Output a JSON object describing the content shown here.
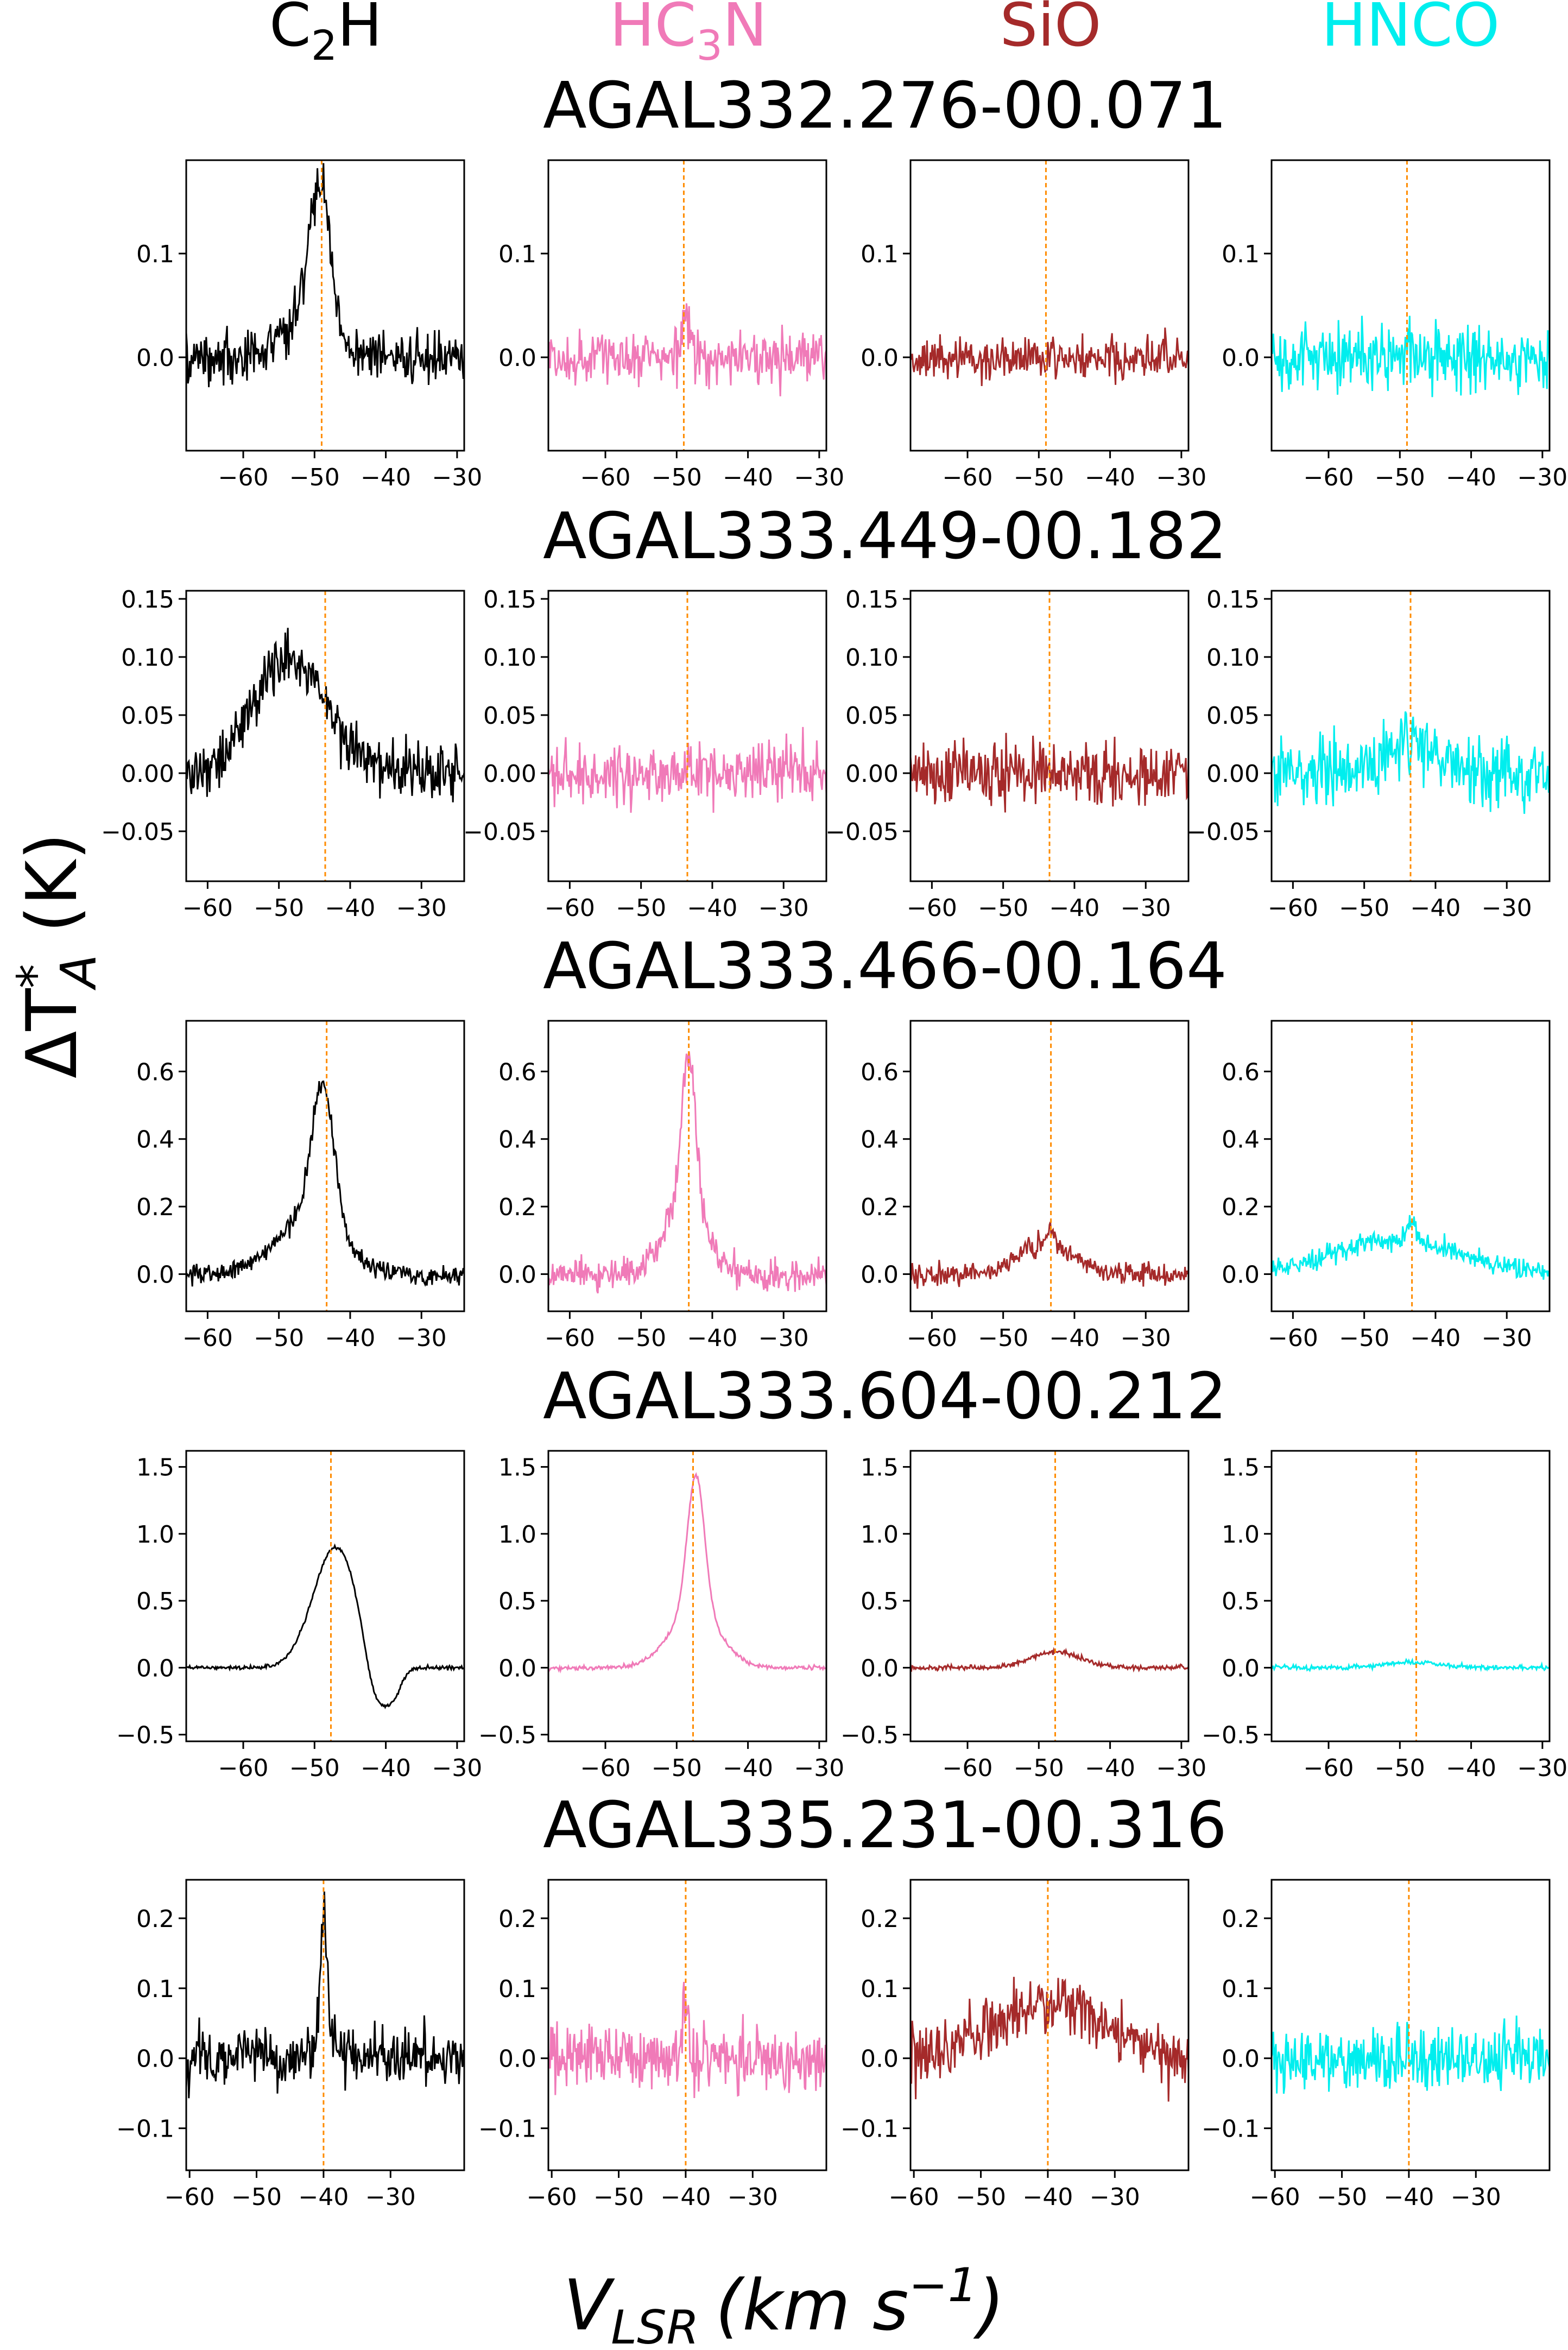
{
  "columns": [
    {
      "name": "C",
      "sub": "2",
      "rest": "H",
      "color": "#000000"
    },
    {
      "name": "HC",
      "sub": "3",
      "rest": "N",
      "color": "#f07ab8"
    },
    {
      "name": "SiO",
      "sub": "",
      "rest": "",
      "color": "#a52a2a"
    },
    {
      "name": "HNCO",
      "sub": "",
      "rest": "",
      "color": "#00eeee"
    }
  ],
  "y_axis_label": {
    "prefix": "ΔT",
    "sup": "*",
    "sub": "A",
    "unit": "(K)"
  },
  "x_axis_label": {
    "base": "V",
    "sub": "LSR",
    "unit_open": "(km s",
    "unit_sup": "−1",
    "unit_close": ")"
  },
  "chart_data": [
    {
      "source": "AGAL332.276-00.071",
      "type": "line",
      "vlsr": -49,
      "xlim": [
        -68,
        -29
      ],
      "ylim": [
        -0.09,
        0.19
      ],
      "xticks": [
        -60,
        -50,
        -40,
        -30
      ],
      "yticks": [
        {
          "v": 0.0,
          "label": "0.0"
        },
        {
          "v": 0.1,
          "label": "0.1"
        }
      ],
      "series": [
        {
          "noise": 0.018,
          "lines": [
            {
              "c": -49.2,
              "a": 0.13,
              "w": 1.5
            },
            {
              "c": -51,
              "a": 0.04,
              "w": 3
            }
          ]
        },
        {
          "noise": 0.018,
          "lines": [
            {
              "c": -48.8,
              "a": 0.04,
              "w": 0.6
            }
          ]
        },
        {
          "noise": 0.015,
          "lines": []
        },
        {
          "noise": 0.022,
          "lines": [
            {
              "c": -49,
              "a": 0.02,
              "w": 0.5
            }
          ]
        }
      ]
    },
    {
      "source": "AGAL333.449-00.182",
      "type": "line",
      "vlsr": -43.5,
      "xlim": [
        -63,
        -24
      ],
      "ylim": [
        -0.093,
        0.157
      ],
      "xticks": [
        -60,
        -50,
        -40,
        -30
      ],
      "yticks": [
        {
          "v": -0.05,
          "label": "−0.05"
        },
        {
          "v": 0.0,
          "label": "0.00"
        },
        {
          "v": 0.05,
          "label": "0.05"
        },
        {
          "v": 0.1,
          "label": "0.10"
        },
        {
          "v": 0.15,
          "label": "0.15"
        }
      ],
      "series": [
        {
          "noise": 0.017,
          "lines": [
            {
              "c": -48.5,
              "a": 0.1,
              "w": 5
            }
          ]
        },
        {
          "noise": 0.02,
          "lines": []
        },
        {
          "noise": 0.02,
          "lines": []
        },
        {
          "noise": 0.021,
          "lines": [
            {
              "c": -44,
              "a": 0.025,
              "w": 4
            }
          ]
        }
      ]
    },
    {
      "source": "AGAL333.466-00.164",
      "type": "line",
      "vlsr": -43.3,
      "xlim": [
        -63,
        -24
      ],
      "ylim": [
        -0.11,
        0.75
      ],
      "xticks": [
        -60,
        -50,
        -40,
        -30
      ],
      "yticks": [
        {
          "v": 0.0,
          "label": "0.0"
        },
        {
          "v": 0.2,
          "label": "0.2"
        },
        {
          "v": 0.4,
          "label": "0.4"
        },
        {
          "v": 0.6,
          "label": "0.6"
        }
      ],
      "series": [
        {
          "noise": 0.022,
          "lines": [
            {
              "c": -43.8,
              "a": 0.42,
              "w": 1.6
            },
            {
              "c": -46,
              "a": 0.16,
              "w": 4.5
            }
          ]
        },
        {
          "noise": 0.035,
          "lines": [
            {
              "c": -43.3,
              "a": 0.45,
              "w": 1.0
            },
            {
              "c": -44,
              "a": 0.2,
              "w": 3
            }
          ]
        },
        {
          "noise": 0.022,
          "lines": [
            {
              "c": -44,
              "a": 0.09,
              "w": 4
            },
            {
              "c": -43.4,
              "a": 0.05,
              "w": 0.6
            }
          ]
        },
        {
          "noise": 0.022,
          "lines": [
            {
              "c": -45.5,
              "a": 0.1,
              "w": 9
            },
            {
              "c": -43.3,
              "a": 0.06,
              "w": 0.6
            }
          ]
        }
      ]
    },
    {
      "source": "AGAL333.604-00.212",
      "type": "line",
      "vlsr": -47.7,
      "xlim": [
        -68,
        -29
      ],
      "ylim": [
        -0.55,
        1.62
      ],
      "xticks": [
        -60,
        -50,
        -40,
        -30
      ],
      "yticks": [
        {
          "v": -0.5,
          "label": "−0.5"
        },
        {
          "v": 0.0,
          "label": "0.0"
        },
        {
          "v": 0.5,
          "label": "0.5"
        },
        {
          "v": 1.0,
          "label": "1.0"
        },
        {
          "v": 1.5,
          "label": "1.5"
        }
      ],
      "series": [
        {
          "noise": 0.01,
          "lines": [
            {
              "c": -47,
              "a": 0.9,
              "w": 3.2
            },
            {
              "c": -41.5,
              "a": -0.38,
              "w": 1.5
            },
            {
              "c": -39,
              "a": -0.2,
              "w": 1.2
            }
          ]
        },
        {
          "noise": 0.012,
          "lines": [
            {
              "c": -47.3,
              "a": 1.02,
              "w": 1.2
            },
            {
              "c": -47.5,
              "a": 0.42,
              "w": 3.5
            }
          ]
        },
        {
          "noise": 0.014,
          "lines": [
            {
              "c": -47.5,
              "a": 0.12,
              "w": 3.5
            }
          ]
        },
        {
          "noise": 0.013,
          "lines": [
            {
              "c": -48,
              "a": 0.04,
              "w": 4
            }
          ]
        }
      ]
    },
    {
      "source": "AGAL335.231-00.316",
      "type": "line",
      "vlsr": -40,
      "xlim": [
        -60.5,
        -19
      ],
      "ylim": [
        -0.16,
        0.255
      ],
      "xticks": [
        -60,
        -50,
        -40,
        -30
      ],
      "yticks": [
        {
          "v": -0.1,
          "label": "−0.1"
        },
        {
          "v": 0.0,
          "label": "0.0"
        },
        {
          "v": 0.1,
          "label": "0.1"
        },
        {
          "v": 0.2,
          "label": "0.2"
        }
      ],
      "series": [
        {
          "noise": 0.03,
          "lines": [
            {
              "c": -40,
              "a": 0.16,
              "w": 0.5
            },
            {
              "c": -39.5,
              "a": 0.05,
              "w": 1.2
            }
          ]
        },
        {
          "noise": 0.033,
          "lines": [
            {
              "c": -40,
              "a": 0.08,
              "w": 0.4
            }
          ]
        },
        {
          "noise": 0.032,
          "lines": [
            {
              "c": -40,
              "a": 0.08,
              "w": 8
            }
          ]
        },
        {
          "noise": 0.032,
          "lines": [
            {
              "c": -40,
              "a": 0.03,
              "w": 0.4
            }
          ]
        }
      ]
    }
  ]
}
